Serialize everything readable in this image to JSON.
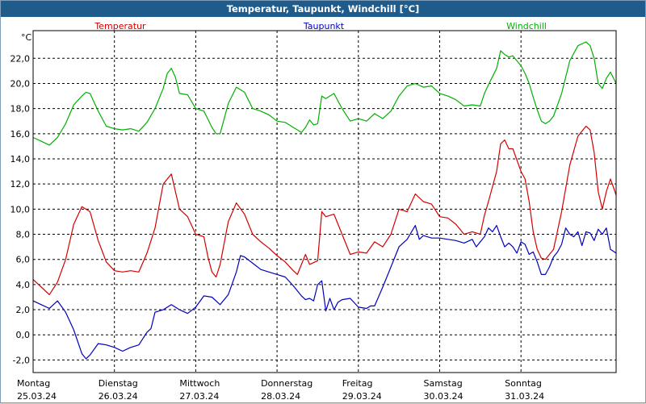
{
  "chart_data": {
    "type": "line",
    "title": "Temperatur, Taupunkt, Windchill [°C]",
    "ylabel": "°C",
    "ylim": [
      -3.0,
      24.2
    ],
    "yticks": [
      -2,
      0,
      2,
      4,
      6,
      8,
      10,
      12,
      14,
      16,
      18,
      20,
      22
    ],
    "ytick_labels": [
      "-2,0",
      "0,0",
      "2,0",
      "4,0",
      "6,0",
      "8,0",
      "10,0",
      "12,0",
      "14,0",
      "16,0",
      "18,0",
      "20,0",
      "22,0"
    ],
    "xlim": [
      0,
      7.17
    ],
    "x_ticks": [
      0,
      1,
      2,
      3,
      4,
      5,
      6
    ],
    "days": [
      {
        "day": "Montag",
        "date": "25.03.24"
      },
      {
        "day": "Dienstag",
        "date": "26.03.24"
      },
      {
        "day": "Mittwoch",
        "date": "27.03.24"
      },
      {
        "day": "Donnerstag",
        "date": "28.03.24"
      },
      {
        "day": "Freitag",
        "date": "29.03.24"
      },
      {
        "day": "Samstag",
        "date": "30.03.24"
      },
      {
        "day": "Sonntag",
        "date": "31.03.24"
      }
    ],
    "grid": true,
    "series": [
      {
        "name": "Temperatur",
        "color": "#d40000",
        "points": [
          [
            0.0,
            4.4
          ],
          [
            0.1,
            3.8
          ],
          [
            0.2,
            3.2
          ],
          [
            0.3,
            4.2
          ],
          [
            0.4,
            6.0
          ],
          [
            0.5,
            8.8
          ],
          [
            0.6,
            10.2
          ],
          [
            0.7,
            9.8
          ],
          [
            0.8,
            7.5
          ],
          [
            0.9,
            5.8
          ],
          [
            1.0,
            5.1
          ],
          [
            1.1,
            5.0
          ],
          [
            1.2,
            5.1
          ],
          [
            1.3,
            5.0
          ],
          [
            1.4,
            6.5
          ],
          [
            1.5,
            8.5
          ],
          [
            1.6,
            12.0
          ],
          [
            1.7,
            12.8
          ],
          [
            1.8,
            10.0
          ],
          [
            1.9,
            9.4
          ],
          [
            2.0,
            8.0
          ],
          [
            2.1,
            7.8
          ],
          [
            2.15,
            6.2
          ],
          [
            2.2,
            5.0
          ],
          [
            2.25,
            4.6
          ],
          [
            2.3,
            5.6
          ],
          [
            2.4,
            9.0
          ],
          [
            2.5,
            10.5
          ],
          [
            2.6,
            9.6
          ],
          [
            2.7,
            8.0
          ],
          [
            2.8,
            7.4
          ],
          [
            2.9,
            6.9
          ],
          [
            3.0,
            6.3
          ],
          [
            3.1,
            5.8
          ],
          [
            3.2,
            5.1
          ],
          [
            3.25,
            4.8
          ],
          [
            3.3,
            5.6
          ],
          [
            3.35,
            6.4
          ],
          [
            3.4,
            5.6
          ],
          [
            3.5,
            5.9
          ],
          [
            3.55,
            9.8
          ],
          [
            3.6,
            9.4
          ],
          [
            3.7,
            9.6
          ],
          [
            3.8,
            8.0
          ],
          [
            3.9,
            6.4
          ],
          [
            4.0,
            6.6
          ],
          [
            4.1,
            6.5
          ],
          [
            4.2,
            7.4
          ],
          [
            4.3,
            7.0
          ],
          [
            4.4,
            8.0
          ],
          [
            4.5,
            10.0
          ],
          [
            4.6,
            9.8
          ],
          [
            4.7,
            11.2
          ],
          [
            4.8,
            10.6
          ],
          [
            4.9,
            10.4
          ],
          [
            5.0,
            9.4
          ],
          [
            5.1,
            9.3
          ],
          [
            5.2,
            8.8
          ],
          [
            5.3,
            8.0
          ],
          [
            5.4,
            8.2
          ],
          [
            5.5,
            8.0
          ],
          [
            5.55,
            9.5
          ],
          [
            5.6,
            10.6
          ],
          [
            5.7,
            13.0
          ],
          [
            5.75,
            15.2
          ],
          [
            5.8,
            15.5
          ],
          [
            5.85,
            14.8
          ],
          [
            5.9,
            14.8
          ],
          [
            6.0,
            13.0
          ],
          [
            6.05,
            12.4
          ],
          [
            6.1,
            10.6
          ],
          [
            6.15,
            8.2
          ],
          [
            6.2,
            6.8
          ],
          [
            6.25,
            6.1
          ],
          [
            6.3,
            6.0
          ],
          [
            6.4,
            6.8
          ],
          [
            6.5,
            9.8
          ],
          [
            6.6,
            13.5
          ],
          [
            6.7,
            15.8
          ],
          [
            6.8,
            16.6
          ],
          [
            6.85,
            16.3
          ],
          [
            6.9,
            14.5
          ],
          [
            6.95,
            11.4
          ],
          [
            7.0,
            10.0
          ],
          [
            7.05,
            11.4
          ],
          [
            7.1,
            12.4
          ],
          [
            7.15,
            11.5
          ],
          [
            7.17,
            11.1
          ]
        ]
      },
      {
        "name": "Taupunkt",
        "color": "#0000c0",
        "points": [
          [
            0.0,
            2.7
          ],
          [
            0.1,
            2.4
          ],
          [
            0.2,
            2.1
          ],
          [
            0.3,
            2.7
          ],
          [
            0.4,
            1.8
          ],
          [
            0.5,
            0.4
          ],
          [
            0.6,
            -1.5
          ],
          [
            0.65,
            -1.9
          ],
          [
            0.7,
            -1.6
          ],
          [
            0.8,
            -0.7
          ],
          [
            0.9,
            -0.8
          ],
          [
            1.0,
            -1.0
          ],
          [
            1.1,
            -1.3
          ],
          [
            1.2,
            -1.0
          ],
          [
            1.3,
            -0.8
          ],
          [
            1.4,
            0.2
          ],
          [
            1.45,
            0.5
          ],
          [
            1.5,
            1.8
          ],
          [
            1.6,
            2.0
          ],
          [
            1.7,
            2.4
          ],
          [
            1.8,
            2.0
          ],
          [
            1.9,
            1.7
          ],
          [
            2.0,
            2.2
          ],
          [
            2.1,
            3.1
          ],
          [
            2.2,
            3.0
          ],
          [
            2.3,
            2.4
          ],
          [
            2.4,
            3.2
          ],
          [
            2.5,
            5.0
          ],
          [
            2.55,
            6.3
          ],
          [
            2.6,
            6.2
          ],
          [
            2.7,
            5.7
          ],
          [
            2.8,
            5.2
          ],
          [
            2.9,
            5.0
          ],
          [
            3.0,
            4.8
          ],
          [
            3.1,
            4.6
          ],
          [
            3.2,
            3.9
          ],
          [
            3.3,
            3.1
          ],
          [
            3.35,
            2.8
          ],
          [
            3.4,
            2.9
          ],
          [
            3.45,
            2.7
          ],
          [
            3.5,
            4.0
          ],
          [
            3.55,
            4.3
          ],
          [
            3.6,
            1.9
          ],
          [
            3.65,
            2.9
          ],
          [
            3.7,
            2.0
          ],
          [
            3.75,
            2.6
          ],
          [
            3.8,
            2.8
          ],
          [
            3.9,
            2.9
          ],
          [
            4.0,
            2.2
          ],
          [
            4.1,
            2.1
          ],
          [
            4.15,
            2.3
          ],
          [
            4.2,
            2.3
          ],
          [
            4.3,
            3.8
          ],
          [
            4.4,
            5.4
          ],
          [
            4.5,
            7.0
          ],
          [
            4.6,
            7.6
          ],
          [
            4.7,
            8.7
          ],
          [
            4.75,
            7.6
          ],
          [
            4.8,
            7.9
          ],
          [
            4.9,
            7.7
          ],
          [
            5.0,
            7.7
          ],
          [
            5.1,
            7.6
          ],
          [
            5.2,
            7.5
          ],
          [
            5.3,
            7.3
          ],
          [
            5.4,
            7.6
          ],
          [
            5.45,
            7.0
          ],
          [
            5.5,
            7.4
          ],
          [
            5.55,
            7.8
          ],
          [
            5.6,
            8.5
          ],
          [
            5.65,
            8.2
          ],
          [
            5.7,
            8.7
          ],
          [
            5.75,
            7.8
          ],
          [
            5.8,
            7.0
          ],
          [
            5.85,
            7.3
          ],
          [
            5.9,
            7.0
          ],
          [
            5.95,
            6.5
          ],
          [
            6.0,
            7.4
          ],
          [
            6.05,
            7.2
          ],
          [
            6.1,
            6.4
          ],
          [
            6.15,
            6.6
          ],
          [
            6.2,
            5.8
          ],
          [
            6.25,
            4.8
          ],
          [
            6.3,
            4.8
          ],
          [
            6.35,
            5.4
          ],
          [
            6.4,
            6.2
          ],
          [
            6.45,
            6.6
          ],
          [
            6.5,
            7.2
          ],
          [
            6.55,
            8.5
          ],
          [
            6.6,
            8.0
          ],
          [
            6.65,
            7.8
          ],
          [
            6.7,
            8.2
          ],
          [
            6.75,
            7.1
          ],
          [
            6.8,
            8.2
          ],
          [
            6.85,
            8.1
          ],
          [
            6.9,
            7.5
          ],
          [
            6.95,
            8.4
          ],
          [
            7.0,
            8.0
          ],
          [
            7.05,
            8.5
          ],
          [
            7.1,
            6.8
          ],
          [
            7.17,
            6.5
          ]
        ]
      },
      {
        "name": "Windchill",
        "color": "#00b000",
        "points": [
          [
            0.0,
            15.7
          ],
          [
            0.1,
            15.4
          ],
          [
            0.2,
            15.1
          ],
          [
            0.3,
            15.7
          ],
          [
            0.4,
            16.8
          ],
          [
            0.5,
            18.3
          ],
          [
            0.6,
            19.0
          ],
          [
            0.65,
            19.3
          ],
          [
            0.7,
            19.2
          ],
          [
            0.8,
            17.8
          ],
          [
            0.9,
            16.6
          ],
          [
            1.0,
            16.4
          ],
          [
            1.1,
            16.3
          ],
          [
            1.2,
            16.4
          ],
          [
            1.3,
            16.2
          ],
          [
            1.4,
            16.9
          ],
          [
            1.5,
            18.0
          ],
          [
            1.6,
            19.6
          ],
          [
            1.65,
            20.8
          ],
          [
            1.7,
            21.2
          ],
          [
            1.75,
            20.5
          ],
          [
            1.8,
            19.2
          ],
          [
            1.9,
            19.1
          ],
          [
            2.0,
            18.0
          ],
          [
            2.1,
            17.8
          ],
          [
            2.2,
            16.5
          ],
          [
            2.25,
            16.0
          ],
          [
            2.3,
            16.0
          ],
          [
            2.4,
            18.4
          ],
          [
            2.5,
            19.7
          ],
          [
            2.6,
            19.3
          ],
          [
            2.7,
            18.0
          ],
          [
            2.8,
            17.8
          ],
          [
            2.9,
            17.5
          ],
          [
            3.0,
            17.0
          ],
          [
            3.1,
            16.9
          ],
          [
            3.2,
            16.5
          ],
          [
            3.25,
            16.3
          ],
          [
            3.3,
            16.1
          ],
          [
            3.35,
            16.5
          ],
          [
            3.4,
            17.1
          ],
          [
            3.45,
            16.7
          ],
          [
            3.5,
            16.8
          ],
          [
            3.55,
            19.0
          ],
          [
            3.6,
            18.8
          ],
          [
            3.7,
            19.2
          ],
          [
            3.8,
            18.0
          ],
          [
            3.9,
            17.0
          ],
          [
            4.0,
            17.2
          ],
          [
            4.1,
            17.0
          ],
          [
            4.2,
            17.6
          ],
          [
            4.3,
            17.2
          ],
          [
            4.4,
            17.8
          ],
          [
            4.5,
            19.0
          ],
          [
            4.6,
            19.8
          ],
          [
            4.7,
            20.0
          ],
          [
            4.8,
            19.7
          ],
          [
            4.9,
            19.8
          ],
          [
            5.0,
            19.2
          ],
          [
            5.1,
            19.0
          ],
          [
            5.2,
            18.7
          ],
          [
            5.3,
            18.2
          ],
          [
            5.4,
            18.3
          ],
          [
            5.5,
            18.2
          ],
          [
            5.55,
            19.2
          ],
          [
            5.6,
            19.9
          ],
          [
            5.7,
            21.2
          ],
          [
            5.75,
            22.6
          ],
          [
            5.8,
            22.3
          ],
          [
            5.85,
            22.1
          ],
          [
            5.9,
            22.2
          ],
          [
            6.0,
            21.4
          ],
          [
            6.05,
            20.8
          ],
          [
            6.1,
            20.0
          ],
          [
            6.15,
            18.9
          ],
          [
            6.2,
            17.9
          ],
          [
            6.25,
            17.0
          ],
          [
            6.3,
            16.8
          ],
          [
            6.35,
            17.0
          ],
          [
            6.4,
            17.4
          ],
          [
            6.5,
            19.2
          ],
          [
            6.6,
            21.8
          ],
          [
            6.7,
            23.0
          ],
          [
            6.8,
            23.3
          ],
          [
            6.85,
            23.0
          ],
          [
            6.9,
            22.0
          ],
          [
            6.95,
            20.0
          ],
          [
            7.0,
            19.6
          ],
          [
            7.05,
            20.4
          ],
          [
            7.1,
            20.9
          ],
          [
            7.17,
            20.0
          ]
        ]
      }
    ]
  },
  "colors": {
    "title_bar": "#1f5c8c",
    "grid": "#000000"
  }
}
